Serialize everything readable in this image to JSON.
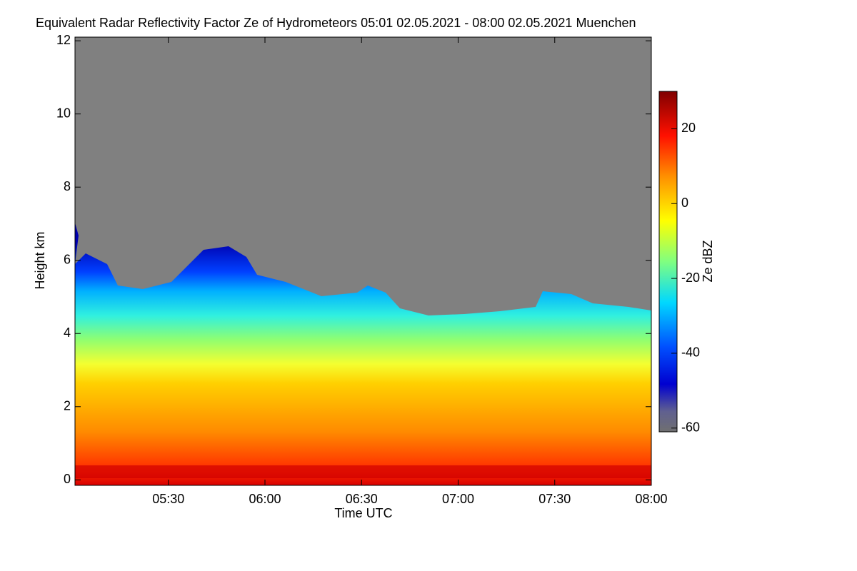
{
  "chart_data": {
    "type": "heatmap",
    "title": "Equivalent Radar Reflectivity Factor Ze of Hydrometeors   05:01 02.05.2021 - 08:00 02.05.2021 Muenchen",
    "x_label": "Time UTC",
    "y_label": "Height km",
    "xlim": [
      301,
      480
    ],
    "xticks": [
      {
        "value": 330,
        "label": "05:30"
      },
      {
        "value": 360,
        "label": "06:00"
      },
      {
        "value": 390,
        "label": "06:30"
      },
      {
        "value": 420,
        "label": "07:00"
      },
      {
        "value": 450,
        "label": "07:30"
      },
      {
        "value": 480,
        "label": "08:00"
      }
    ],
    "ylim": [
      -0.15,
      12.1
    ],
    "yticks": [
      0,
      2,
      4,
      6,
      8,
      10,
      12
    ],
    "colorbar_label": "Ze dBZ",
    "clim": [
      -61,
      30
    ],
    "cticks": [
      -60,
      -40,
      -20,
      0,
      20
    ]
  }
}
